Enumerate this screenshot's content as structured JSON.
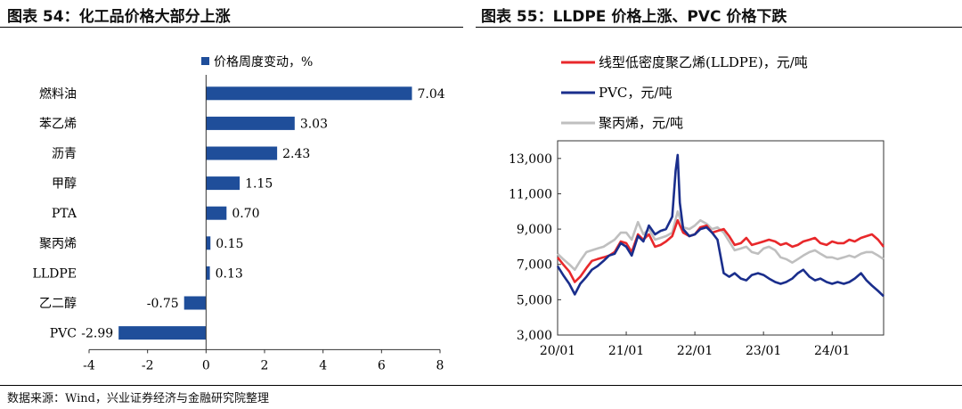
{
  "figures": {
    "left": {
      "title": "图表 54：化工品价格大部分上涨"
    },
    "right": {
      "title": "图表 55：LLDPE 价格上涨、PVC 价格下跌"
    }
  },
  "source": "数据来源：Wind，兴业证券经济与金融研究院整理",
  "chart_data": [
    {
      "type": "bar",
      "orientation": "horizontal",
      "categories": [
        "燃料油",
        "苯乙烯",
        "沥青",
        "甲醇",
        "PTA",
        "聚丙烯",
        "LLDPE",
        "乙二醇",
        "PVC"
      ],
      "series": [
        {
          "name": "价格周度变动，%",
          "values": [
            7.04,
            3.03,
            2.43,
            1.15,
            0.7,
            0.15,
            0.13,
            -0.75,
            -2.99
          ]
        }
      ],
      "value_labels": [
        "7.04",
        "3.03",
        "2.43",
        "1.15",
        "0.70",
        "0.15",
        "0.13",
        "-0.75",
        "-2.99"
      ],
      "xlim": [
        -4,
        8
      ],
      "xticks": [
        "-4",
        "-2",
        "0",
        "2",
        "4",
        "6",
        "8"
      ],
      "legend_position": "top",
      "colors": {
        "bar": "#1F4E9A"
      }
    },
    {
      "type": "line",
      "xlim": [
        2020.0,
        2024.75
      ],
      "xticks": [
        {
          "value": 2020.0,
          "label": "20/01"
        },
        {
          "value": 2021.0,
          "label": "21/01"
        },
        {
          "value": 2022.0,
          "label": "22/01"
        },
        {
          "value": 2023.0,
          "label": "23/01"
        },
        {
          "value": 2024.0,
          "label": "24/01"
        }
      ],
      "ylim": [
        3000,
        14000
      ],
      "yticks": [
        "3,000",
        "5,000",
        "7,000",
        "9,000",
        "11,000",
        "13,000"
      ],
      "legend_position": "top-left",
      "series": [
        {
          "name": "线型低密度聚乙烯(LLDPE)，元/吨",
          "color": "#E8282B",
          "x": [
            2020.0,
            2020.08,
            2020.17,
            2020.25,
            2020.33,
            2020.42,
            2020.5,
            2020.58,
            2020.67,
            2020.75,
            2020.83,
            2020.92,
            2021.0,
            2021.08,
            2021.17,
            2021.25,
            2021.33,
            2021.42,
            2021.5,
            2021.58,
            2021.67,
            2021.75,
            2021.83,
            2021.92,
            2022.0,
            2022.08,
            2022.17,
            2022.25,
            2022.33,
            2022.42,
            2022.5,
            2022.58,
            2022.67,
            2022.75,
            2022.83,
            2022.92,
            2023.0,
            2023.08,
            2023.17,
            2023.25,
            2023.33,
            2023.42,
            2023.5,
            2023.58,
            2023.67,
            2023.75,
            2023.83,
            2023.92,
            2024.0,
            2024.08,
            2024.17,
            2024.25,
            2024.33,
            2024.42,
            2024.5,
            2024.58,
            2024.67,
            2024.75
          ],
          "y": [
            7400,
            7000,
            6600,
            6000,
            6300,
            6800,
            7200,
            7300,
            7400,
            7500,
            7700,
            8300,
            8200,
            7700,
            8700,
            8400,
            8700,
            8000,
            8100,
            8300,
            8600,
            9500,
            8800,
            8600,
            8700,
            9100,
            9200,
            8800,
            8900,
            9000,
            8600,
            8100,
            8200,
            8500,
            8100,
            8200,
            8300,
            8400,
            8300,
            8100,
            8200,
            8000,
            8100,
            8300,
            8400,
            8500,
            8200,
            8100,
            8300,
            8200,
            8200,
            8400,
            8300,
            8500,
            8600,
            8700,
            8400,
            8000
          ]
        },
        {
          "name": "PVC，元/吨",
          "color": "#1A2E8C",
          "x": [
            2020.0,
            2020.08,
            2020.17,
            2020.25,
            2020.33,
            2020.42,
            2020.5,
            2020.58,
            2020.67,
            2020.75,
            2020.83,
            2020.92,
            2021.0,
            2021.08,
            2021.17,
            2021.25,
            2021.33,
            2021.42,
            2021.5,
            2021.58,
            2021.67,
            2021.72,
            2021.75,
            2021.78,
            2021.83,
            2021.92,
            2022.0,
            2022.08,
            2022.17,
            2022.25,
            2022.33,
            2022.42,
            2022.5,
            2022.58,
            2022.67,
            2022.75,
            2022.83,
            2022.92,
            2023.0,
            2023.08,
            2023.17,
            2023.25,
            2023.33,
            2023.42,
            2023.5,
            2023.58,
            2023.67,
            2023.75,
            2023.83,
            2023.92,
            2024.0,
            2024.08,
            2024.17,
            2024.25,
            2024.33,
            2024.42,
            2024.5,
            2024.58,
            2024.67,
            2024.75
          ],
          "y": [
            6900,
            6400,
            5900,
            5300,
            5900,
            6300,
            6700,
            6900,
            7200,
            7500,
            7600,
            8200,
            8000,
            7500,
            8600,
            8300,
            9200,
            8700,
            8900,
            9000,
            9700,
            12300,
            13200,
            10500,
            9000,
            8600,
            8700,
            9000,
            9100,
            8800,
            8400,
            6500,
            6300,
            6500,
            6200,
            6100,
            6400,
            6500,
            6400,
            6200,
            6000,
            5900,
            6000,
            6200,
            6500,
            6700,
            6300,
            6100,
            6200,
            6000,
            5900,
            6000,
            5900,
            6000,
            6200,
            6500,
            6100,
            5800,
            5500,
            5200
          ]
        },
        {
          "name": "聚丙烯，元/吨",
          "color": "#BFBFBF",
          "x": [
            2020.0,
            2020.08,
            2020.17,
            2020.25,
            2020.33,
            2020.42,
            2020.5,
            2020.58,
            2020.67,
            2020.75,
            2020.83,
            2020.92,
            2021.0,
            2021.08,
            2021.17,
            2021.25,
            2021.33,
            2021.42,
            2021.5,
            2021.58,
            2021.67,
            2021.75,
            2021.83,
            2021.92,
            2022.0,
            2022.08,
            2022.17,
            2022.25,
            2022.33,
            2022.42,
            2022.5,
            2022.58,
            2022.67,
            2022.75,
            2022.83,
            2022.92,
            2023.0,
            2023.08,
            2023.17,
            2023.25,
            2023.33,
            2023.42,
            2023.5,
            2023.58,
            2023.67,
            2023.75,
            2023.83,
            2023.92,
            2024.0,
            2024.08,
            2024.17,
            2024.25,
            2024.33,
            2024.42,
            2024.5,
            2024.58,
            2024.67,
            2024.75
          ],
          "y": [
            7600,
            7300,
            7000,
            6700,
            7200,
            7700,
            7800,
            7900,
            8000,
            8200,
            8400,
            8800,
            8800,
            8400,
            9400,
            8700,
            9000,
            8400,
            8500,
            8600,
            8800,
            10000,
            9100,
            9000,
            9200,
            9500,
            9300,
            9000,
            9100,
            8800,
            8300,
            7800,
            7900,
            8000,
            7700,
            7600,
            7900,
            8000,
            7800,
            7400,
            7300,
            7100,
            7300,
            7500,
            7700,
            7800,
            7600,
            7400,
            7400,
            7300,
            7400,
            7500,
            7400,
            7600,
            7700,
            7700,
            7500,
            7300
          ]
        }
      ]
    }
  ]
}
